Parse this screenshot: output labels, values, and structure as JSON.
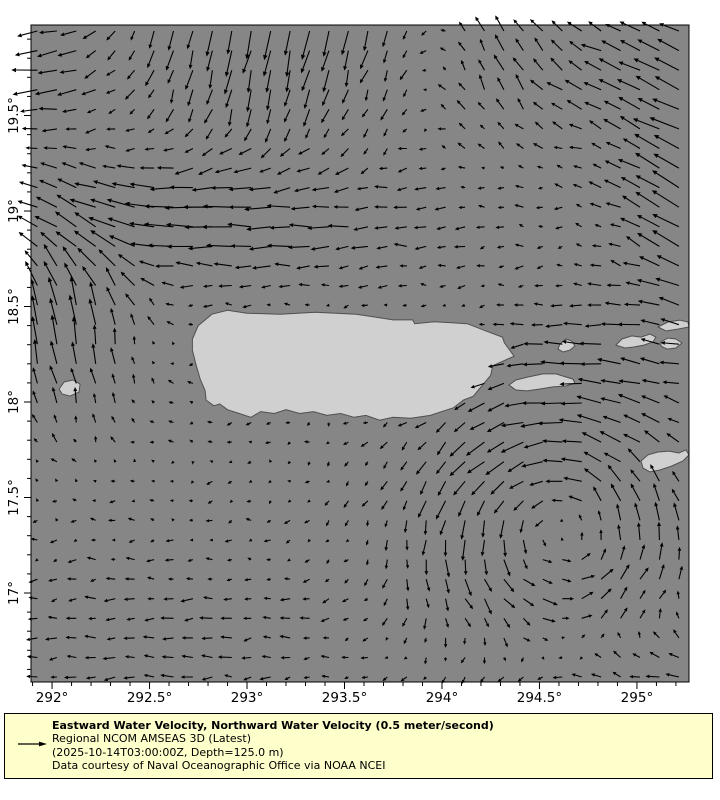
{
  "chart_data": {
    "type": "quiver_map",
    "title": "Eastward Water Velocity, Northward Water Velocity (0.5 meter/second)",
    "dataset_line": "Regional NCOM AMSEAS 3D (Latest)",
    "time_depth_line": "(2025-10-14T03:00:00Z, Depth=125.0 m)",
    "attribution_line": "Data courtesy of Naval Oceanographic Office via NOAA NCEI",
    "reference_vector": {
      "value": 0.5,
      "units": "meter/second"
    },
    "x_axis": {
      "range": [
        291.892,
        295.267
      ],
      "major_ticks": [
        {
          "value": 292.0,
          "label": "292°"
        },
        {
          "value": 292.5,
          "label": "292.5°"
        },
        {
          "value": 293.0,
          "label": "293°"
        },
        {
          "value": 293.5,
          "label": "293.5°"
        },
        {
          "value": 294.0,
          "label": "294°"
        },
        {
          "value": 294.5,
          "label": "294.5°"
        },
        {
          "value": 295.0,
          "label": "295°"
        }
      ],
      "minor_step": 0.1
    },
    "y_axis": {
      "range": [
        16.534,
        19.974
      ],
      "major_ticks": [
        {
          "value": 17.0,
          "label": "17°"
        },
        {
          "value": 17.5,
          "label": "17.5°"
        },
        {
          "value": 18.0,
          "label": "18°"
        },
        {
          "value": 18.5,
          "label": "18.5°"
        },
        {
          "value": 19.0,
          "label": "19°"
        },
        {
          "value": 19.5,
          "label": "19.5°"
        }
      ],
      "minor_step": 0.1
    },
    "vector_grid": {
      "lon_start": 291.925,
      "lon_step": 0.0997,
      "cols": 34,
      "lat_start": 16.56,
      "lat_step": 0.1025,
      "rows": 34,
      "pixels_per_meter_per_second": 60
    },
    "flow_model": {
      "base": {
        "u": -0.05,
        "v": -0.01
      },
      "noise": 0.05,
      "features": [
        {
          "name": "southward-jet-north",
          "type": "gauss",
          "lon": 293.15,
          "lat": 19.95,
          "slon": 0.8,
          "slat": 0.55,
          "u": -0.05,
          "v": -0.45
        },
        {
          "name": "westward-band-19N",
          "type": "gauss",
          "lon": 292.7,
          "lat": 18.95,
          "slon": 1.15,
          "slat": 0.33,
          "u": -0.42,
          "v": 0.02
        },
        {
          "name": "westward-top-left",
          "type": "gauss",
          "lon": 291.85,
          "lat": 19.75,
          "slon": 0.4,
          "slat": 0.4,
          "u": -0.38,
          "v": 0.0
        },
        {
          "name": "northwest-top-right",
          "type": "gauss",
          "lon": 295.2,
          "lat": 19.75,
          "slon": 0.75,
          "slat": 0.5,
          "u": -0.32,
          "v": 0.18
        },
        {
          "name": "north-patch-top",
          "type": "gauss",
          "lon": 294.25,
          "lat": 19.8,
          "slon": 0.35,
          "slat": 0.45,
          "u": 0.0,
          "v": 0.28
        },
        {
          "name": "northwest-right-edge",
          "type": "gauss",
          "lon": 295.3,
          "lat": 19.0,
          "slon": 0.35,
          "slat": 0.5,
          "u": -0.4,
          "v": 0.28
        },
        {
          "name": "mona-passage-north",
          "type": "gauss",
          "lon": 292.2,
          "lat": 18.5,
          "slon": 0.3,
          "slat": 0.6,
          "u": 0.0,
          "v": 0.35
        },
        {
          "name": "left-edge-north",
          "type": "gauss",
          "lon": 291.9,
          "lat": 18.35,
          "slon": 0.25,
          "slat": 0.45,
          "u": -0.05,
          "v": 0.32
        },
        {
          "name": "cyclonic-eddy-southeast",
          "type": "vortex",
          "lon": 294.6,
          "lat": 17.35,
          "r": 0.45,
          "strength": 0.3
        },
        {
          "name": "westward-bottom",
          "type": "gauss",
          "lon": 292.6,
          "lat": 16.7,
          "slon": 1.0,
          "slat": 0.5,
          "u": -0.15,
          "v": 0.0
        },
        {
          "name": "westward-bottom-right",
          "type": "gauss",
          "lon": 294.9,
          "lat": 16.55,
          "slon": 0.8,
          "slat": 0.3,
          "u": -0.28,
          "v": 0.0
        },
        {
          "name": "westward-anegada",
          "type": "gauss",
          "lon": 295.0,
          "lat": 18.3,
          "slon": 0.6,
          "slat": 0.35,
          "u": -0.22,
          "v": 0.0
        }
      ]
    },
    "islands": [
      {
        "name": "puerto-rico",
        "mask_vectors": true,
        "points": [
          [
            292.72,
            18.33
          ],
          [
            292.75,
            18.4
          ],
          [
            292.82,
            18.46
          ],
          [
            292.9,
            18.48
          ],
          [
            293.0,
            18.465
          ],
          [
            293.17,
            18.46
          ],
          [
            293.35,
            18.47
          ],
          [
            293.56,
            18.46
          ],
          [
            293.75,
            18.43
          ],
          [
            293.85,
            18.43
          ],
          [
            293.86,
            18.41
          ],
          [
            293.96,
            18.42
          ],
          [
            294.05,
            18.415
          ],
          [
            294.13,
            18.41
          ],
          [
            294.23,
            18.37
          ],
          [
            294.31,
            18.34
          ],
          [
            294.32,
            18.31
          ],
          [
            294.37,
            18.24
          ],
          [
            294.26,
            18.19
          ],
          [
            294.25,
            18.14
          ],
          [
            294.16,
            18.03
          ],
          [
            294.11,
            18.01
          ],
          [
            294.06,
            17.97
          ],
          [
            293.94,
            17.93
          ],
          [
            293.84,
            17.915
          ],
          [
            293.75,
            17.92
          ],
          [
            293.68,
            17.905
          ],
          [
            293.61,
            17.93
          ],
          [
            293.55,
            17.92
          ],
          [
            293.48,
            17.94
          ],
          [
            293.41,
            17.93
          ],
          [
            293.34,
            17.95
          ],
          [
            293.27,
            17.94
          ],
          [
            293.2,
            17.96
          ],
          [
            293.14,
            17.94
          ],
          [
            293.07,
            17.95
          ],
          [
            293.02,
            17.92
          ],
          [
            292.96,
            17.94
          ],
          [
            292.9,
            17.96
          ],
          [
            292.86,
            17.99
          ],
          [
            292.83,
            17.98
          ],
          [
            292.79,
            18.01
          ],
          [
            292.785,
            18.06
          ],
          [
            292.76,
            18.12
          ],
          [
            292.74,
            18.19
          ],
          [
            292.72,
            18.27
          ]
        ]
      },
      {
        "name": "mona",
        "mask_vectors": false,
        "points": [
          [
            292.036,
            18.068
          ],
          [
            292.062,
            18.105
          ],
          [
            292.108,
            18.115
          ],
          [
            292.144,
            18.094
          ],
          [
            292.138,
            18.052
          ],
          [
            292.092,
            18.031
          ],
          [
            292.051,
            18.042
          ]
        ]
      },
      {
        "name": "vieques",
        "mask_vectors": true,
        "points": [
          [
            294.344,
            18.089
          ],
          [
            294.379,
            18.115
          ],
          [
            294.441,
            18.131
          ],
          [
            294.518,
            18.147
          ],
          [
            294.585,
            18.147
          ],
          [
            294.636,
            18.131
          ],
          [
            294.672,
            18.12
          ],
          [
            294.682,
            18.099
          ],
          [
            294.636,
            18.084
          ],
          [
            294.569,
            18.079
          ],
          [
            294.503,
            18.068
          ],
          [
            294.436,
            18.058
          ],
          [
            294.379,
            18.063
          ]
        ]
      },
      {
        "name": "culebra",
        "mask_vectors": false,
        "points": [
          [
            294.605,
            18.304
          ],
          [
            294.636,
            18.33
          ],
          [
            294.667,
            18.319
          ],
          [
            294.682,
            18.293
          ],
          [
            294.656,
            18.272
          ],
          [
            294.621,
            18.262
          ],
          [
            294.595,
            18.277
          ]
        ]
      },
      {
        "name": "st-thomas",
        "mask_vectors": true,
        "points": [
          [
            294.892,
            18.298
          ],
          [
            294.923,
            18.33
          ],
          [
            294.974,
            18.346
          ],
          [
            295.021,
            18.34
          ],
          [
            295.067,
            18.356
          ],
          [
            295.097,
            18.34
          ],
          [
            295.082,
            18.314
          ],
          [
            295.036,
            18.298
          ],
          [
            294.985,
            18.288
          ],
          [
            294.938,
            18.283
          ]
        ]
      },
      {
        "name": "st-john",
        "mask_vectors": false,
        "points": [
          [
            295.123,
            18.314
          ],
          [
            295.159,
            18.335
          ],
          [
            295.2,
            18.33
          ],
          [
            295.231,
            18.309
          ],
          [
            295.2,
            18.283
          ],
          [
            295.154,
            18.277
          ],
          [
            295.123,
            18.293
          ]
        ]
      },
      {
        "name": "tortola",
        "mask_vectors": false,
        "points": [
          [
            295.108,
            18.393
          ],
          [
            295.159,
            18.419
          ],
          [
            295.221,
            18.429
          ],
          [
            295.262,
            18.419
          ],
          [
            295.267,
            18.393
          ],
          [
            295.21,
            18.382
          ],
          [
            295.149,
            18.372
          ]
        ]
      },
      {
        "name": "st-croix",
        "mask_vectors": true,
        "points": [
          [
            295.021,
            17.691
          ],
          [
            295.056,
            17.723
          ],
          [
            295.108,
            17.738
          ],
          [
            295.164,
            17.743
          ],
          [
            295.215,
            17.733
          ],
          [
            295.251,
            17.749
          ],
          [
            295.267,
            17.723
          ],
          [
            295.236,
            17.691
          ],
          [
            295.179,
            17.665
          ],
          [
            295.118,
            17.644
          ],
          [
            295.067,
            17.634
          ],
          [
            295.031,
            17.654
          ]
        ]
      }
    ]
  },
  "colors": {
    "sea": "#868686",
    "land": "#d0d0d0",
    "coastline": "#4f4f4f",
    "arrow": "#000000",
    "legend_background": "#ffffcc",
    "border": "#000000",
    "page_background": "#ffffff"
  }
}
